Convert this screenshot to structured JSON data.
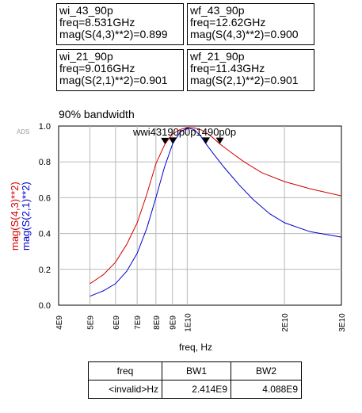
{
  "markers": [
    {
      "name": "wi_43_90p",
      "freq": "freq=8.531GHz",
      "value": "mag(S(4,3)**2)=0.899"
    },
    {
      "name": "wf_43_90p",
      "freq": "freq=12.62GHz",
      "value": "mag(S(4,3)**2)=0.900"
    },
    {
      "name": "wi_21_90p",
      "freq": "freq=9.016GHz",
      "value": "mag(S(2,1)**2)=0.901"
    },
    {
      "name": "wf_21_90p",
      "freq": "freq=11.43GHz",
      "value": "mag(S(2,1)**2)=0.901"
    }
  ],
  "plot_marker_labels": "wwi43190p0p1490p0p",
  "ads_tag": "ADS",
  "colors": {
    "s43": "#d40000",
    "s21": "#0000d0",
    "grid": "#b8b8b8"
  },
  "chart_data": {
    "type": "line",
    "title": "90% bandwidth",
    "xlabel": "freq, Hz",
    "ylabel": [
      "mag(S(4,3)**2)",
      "mag(S(2,1)**2)"
    ],
    "xlim": [
      4000000000.0,
      30000000000.0
    ],
    "x_scale": "log",
    "ylim": [
      0.0,
      1.0
    ],
    "x_ticks": [
      4000000000.0,
      5000000000.0,
      6000000000.0,
      7000000000.0,
      8000000000.0,
      9000000000.0,
      10000000000.0,
      20000000000.0,
      30000000000.0
    ],
    "x_tick_labels": [
      "4E9",
      "5E9",
      "6E9",
      "7E9",
      "8E9",
      "9E9",
      "1E10",
      "2E10",
      "3E10"
    ],
    "y_ticks": [
      0.0,
      0.2,
      0.4,
      0.6,
      0.8,
      1.0
    ],
    "y_tick_labels": [
      "0.0",
      "0.2",
      "0.4",
      "0.6",
      "0.8",
      "1.0"
    ],
    "grid": true,
    "series": [
      {
        "name": "mag(S(4,3)**2)",
        "color": "#d40000",
        "x": [
          5000000000.0,
          5500000000.0,
          6000000000.0,
          6500000000.0,
          7000000000.0,
          7500000000.0,
          8000000000.0,
          8531000000.0,
          9000000000.0,
          9500000000.0,
          10000000000.0,
          10500000000.0,
          11000000000.0,
          11500000000.0,
          12000000000.0,
          12620000000.0,
          13500000000.0,
          15000000000.0,
          17000000000.0,
          20000000000.0,
          24000000000.0,
          30000000000.0
        ],
        "y": [
          0.12,
          0.17,
          0.24,
          0.34,
          0.46,
          0.62,
          0.79,
          0.899,
          0.955,
          0.98,
          0.992,
          0.99,
          0.98,
          0.96,
          0.935,
          0.9,
          0.86,
          0.8,
          0.74,
          0.69,
          0.65,
          0.61
        ]
      },
      {
        "name": "mag(S(2,1)**2)",
        "color": "#0000d0",
        "x": [
          5000000000.0,
          5500000000.0,
          6000000000.0,
          6500000000.0,
          7000000000.0,
          7500000000.0,
          8000000000.0,
          8500000000.0,
          9016000000.0,
          9500000000.0,
          10000000000.0,
          10500000000.0,
          11000000000.0,
          11430000000.0,
          12000000000.0,
          13000000000.0,
          14500000000.0,
          16000000000.0,
          18000000000.0,
          20000000000.0,
          24000000000.0,
          30000000000.0
        ],
        "y": [
          0.05,
          0.08,
          0.12,
          0.19,
          0.29,
          0.43,
          0.6,
          0.77,
          0.901,
          0.965,
          0.99,
          0.98,
          0.945,
          0.901,
          0.85,
          0.77,
          0.67,
          0.59,
          0.51,
          0.46,
          0.41,
          0.38
        ]
      }
    ],
    "marker_points": [
      {
        "x": 8531000000.0,
        "y": 0.899
      },
      {
        "x": 12620000000.0,
        "y": 0.9
      },
      {
        "x": 9016000000.0,
        "y": 0.901
      },
      {
        "x": 11430000000.0,
        "y": 0.901
      }
    ]
  },
  "table": {
    "headers": [
      "freq",
      "BW1",
      "BW2"
    ],
    "rows": [
      [
        "<invalid>Hz",
        "2.414E9",
        "4.088E9"
      ]
    ]
  }
}
